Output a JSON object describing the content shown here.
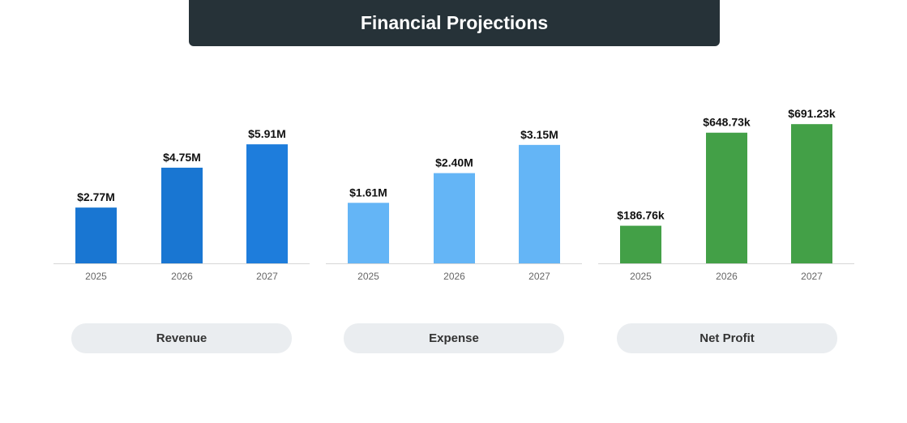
{
  "title": "Financial Projections",
  "chart_data": [
    {
      "type": "bar",
      "title": "Revenue",
      "categories": [
        "2025",
        "2026",
        "2027"
      ],
      "values": [
        2.77,
        4.75,
        5.91
      ],
      "labels": [
        "$2.77M",
        "$4.75M",
        "$5.91M"
      ],
      "unit": "M USD",
      "ylim": [
        0,
        7
      ],
      "colors": [
        "#1976d2",
        "#1976d2",
        "#1e7ddc"
      ]
    },
    {
      "type": "bar",
      "title": "Expense",
      "categories": [
        "2025",
        "2026",
        "2027"
      ],
      "values": [
        1.61,
        2.4,
        3.15
      ],
      "labels": [
        "$1.61M",
        "$2.40M",
        "$3.15M"
      ],
      "unit": "M USD",
      "ylim": [
        0,
        3.75
      ],
      "colors": [
        "#64b5f6",
        "#64b5f6",
        "#64b5f6"
      ]
    },
    {
      "type": "bar",
      "title": "Net Profit",
      "categories": [
        "2025",
        "2026",
        "2027"
      ],
      "values": [
        186.76,
        648.73,
        691.23
      ],
      "labels": [
        "$186.76k",
        "$648.73k",
        "$691.23k"
      ],
      "unit": "k USD",
      "ylim": [
        0,
        700
      ],
      "colors": [
        "#43a047",
        "#43a047",
        "#43a047"
      ]
    }
  ]
}
